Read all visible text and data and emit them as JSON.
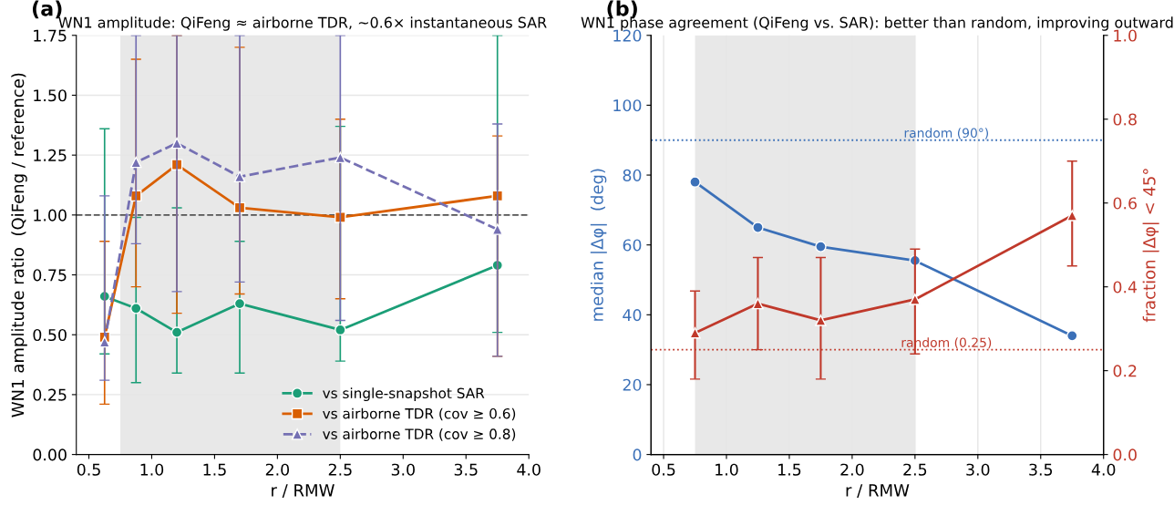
{
  "chart_data": [
    {
      "type": "line",
      "title": "WN1 amplitude: QiFeng ≈ airborne TDR, ~0.6× instantaneous SAR",
      "xlabel": "r / RMW",
      "ylabel": "WN1 amplitude ratio  (QiFeng / reference)",
      "annotations": [
        "(a)"
      ],
      "x": [
        0.625,
        0.875,
        1.2,
        1.7,
        2.5,
        3.75
      ],
      "xlim": [
        0.4,
        4.0
      ],
      "xticks": [
        {
          "value": 0.5,
          "label": "0.5"
        },
        {
          "value": 1.0,
          "label": "1.0"
        },
        {
          "value": 1.5,
          "label": "1.5"
        },
        {
          "value": 2.0,
          "label": "2.0"
        },
        {
          "value": 2.5,
          "label": "2.5"
        },
        {
          "value": 3.0,
          "label": "3.0"
        },
        {
          "value": 3.5,
          "label": "3.5"
        },
        {
          "value": 4.0,
          "label": "4.0"
        }
      ],
      "ylim": [
        0,
        1.75
      ],
      "yticks": [
        {
          "value": 0,
          "label": "0.00"
        },
        {
          "value": 0.25,
          "label": "0.25"
        },
        {
          "value": 0.5,
          "label": "0.50"
        },
        {
          "value": 0.75,
          "label": "0.75"
        },
        {
          "value": 1.0,
          "label": "1.00"
        },
        {
          "value": 1.25,
          "label": "1.25"
        },
        {
          "value": 1.5,
          "label": "1.50"
        },
        {
          "value": 1.75,
          "label": "1.75"
        }
      ],
      "grid": "y",
      "legend": "bottom right",
      "series": [
        {
          "name": "vs single-snapshot SAR",
          "color": "#1b9e77",
          "marker": "circle",
          "line_style": "solid",
          "values": [
            0.66,
            0.61,
            0.51,
            0.63,
            0.52,
            0.79
          ],
          "errors": [
            [
              0.42,
              1.36
            ],
            [
              0.3,
              0.99
            ],
            [
              0.34,
              1.03
            ],
            [
              0.34,
              0.89
            ],
            [
              0.39,
              1.37
            ],
            [
              0.51,
              1.75
            ]
          ]
        },
        {
          "name": "vs airborne TDR (cov ≥ 0.6)",
          "color": "#d95f02",
          "marker": "square",
          "line_style": "solid",
          "values": [
            0.49,
            1.08,
            1.21,
            1.03,
            0.99,
            1.08
          ],
          "errors": [
            [
              0.21,
              0.89
            ],
            [
              0.7,
              1.65
            ],
            [
              0.59,
              1.75
            ],
            [
              0.67,
              1.7
            ],
            [
              0.65,
              1.4
            ],
            [
              0.41,
              1.33
            ]
          ]
        },
        {
          "name": "vs airborne TDR (cov ≥ 0.8)",
          "color": "#7570b3",
          "marker": "triangle",
          "line_style": "dashed",
          "values": [
            0.47,
            1.22,
            1.3,
            1.16,
            1.24,
            0.94
          ],
          "errors": [
            [
              0.31,
              1.08
            ],
            [
              0.88,
              1.75
            ],
            [
              0.68,
              1.75
            ],
            [
              0.72,
              1.75
            ],
            [
              0.56,
              1.75
            ],
            [
              0.41,
              1.38
            ]
          ]
        }
      ],
      "ref_lines": [
        {
          "axis": "y",
          "value": 1.0,
          "color": "#555555",
          "line_style": "dashed"
        }
      ],
      "bands": [
        {
          "axis": "x",
          "from": 0.75,
          "to": 2.5,
          "color": "#e8e8e8"
        }
      ]
    },
    {
      "type": "line",
      "title": "WN1 phase agreement (QiFeng vs. SAR): better than random, improving outward",
      "xlabel": "r / RMW",
      "ylabel": "median |Δφ|  (deg)",
      "y2label": "fraction |Δφ| < 45°",
      "annotations": [
        "(b)"
      ],
      "x": [
        0.75,
        1.25,
        1.75,
        2.5,
        3.75
      ],
      "xlim": [
        0.4,
        4.0
      ],
      "xticks": [
        {
          "value": 0.5,
          "label": "0.5"
        },
        {
          "value": 1.0,
          "label": "1.0"
        },
        {
          "value": 1.5,
          "label": "1.5"
        },
        {
          "value": 2.0,
          "label": "2.0"
        },
        {
          "value": 2.5,
          "label": "2.5"
        },
        {
          "value": 3.0,
          "label": "3.0"
        },
        {
          "value": 3.5,
          "label": "3.5"
        },
        {
          "value": 4.0,
          "label": "4.0"
        }
      ],
      "ylim": [
        0,
        120
      ],
      "yticks": [
        0,
        20,
        40,
        60,
        80,
        100,
        120
      ],
      "y2lim": [
        0,
        1.0
      ],
      "y2ticks": [
        {
          "value": 0,
          "label": "0.0"
        },
        {
          "value": 0.2,
          "label": "0.2"
        },
        {
          "value": 0.4,
          "label": "0.4"
        },
        {
          "value": 0.6,
          "label": "0.6"
        },
        {
          "value": 0.8,
          "label": "0.8"
        },
        {
          "value": 1.0,
          "label": "1.0"
        }
      ],
      "grid": "x",
      "series": [
        {
          "color": "#3b70b8",
          "marker": "circle",
          "line_style": "solid",
          "values": [
            78,
            65,
            59.5,
            55.5,
            34
          ]
        },
        {
          "color": "#c0392b",
          "marker": "triangle",
          "line_style": "solid",
          "axis": "y2",
          "values": [
            0.29,
            0.36,
            0.32,
            0.37,
            0.57
          ],
          "errors": [
            [
              0.18,
              0.39
            ],
            [
              0.25,
              0.47
            ],
            [
              0.18,
              0.47
            ],
            [
              0.24,
              0.49
            ],
            [
              0.45,
              0.7
            ]
          ]
        }
      ],
      "ref_lines": [
        {
          "axis": "y",
          "value": 90,
          "label": "random (90°)",
          "color": "#3b70b8",
          "line_style": "dotted"
        },
        {
          "axis": "y2",
          "value": 0.25,
          "label": "random (0.25)",
          "color": "#c0392b",
          "line_style": "dotted"
        }
      ],
      "bands": [
        {
          "axis": "x",
          "from": 0.75,
          "to": 2.5,
          "color": "#e8e8e8"
        }
      ]
    }
  ]
}
